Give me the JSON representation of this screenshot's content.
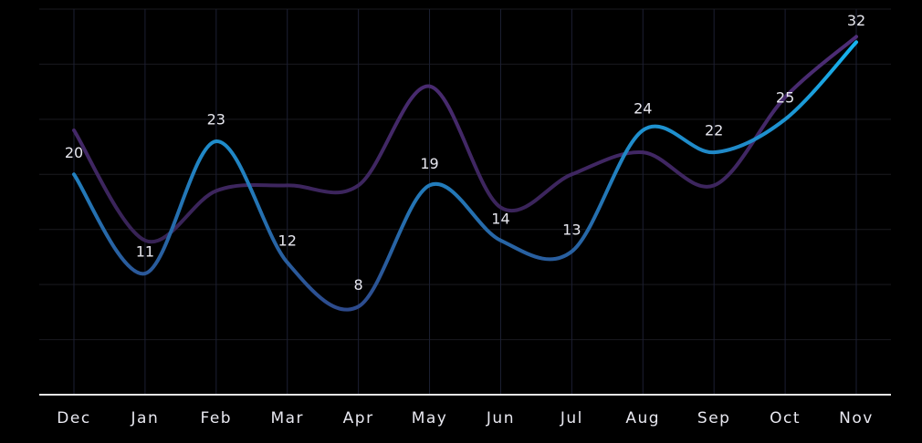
{
  "chart_data": {
    "type": "line",
    "categories": [
      "Dec",
      "Jan",
      "Feb",
      "Mar",
      "Apr",
      "May",
      "Jun",
      "Jul",
      "Aug",
      "Sep",
      "Oct",
      "Nov"
    ],
    "series": [
      {
        "color": "#1aa8ec",
        "values": [
          20,
          11,
          23,
          12,
          8,
          19,
          14,
          13,
          24,
          22,
          25,
          32
        ]
      },
      {
        "color": "#452a66",
        "values": [
          24,
          14,
          18.5,
          19,
          19,
          28,
          17,
          20,
          22,
          19,
          27,
          32.5
        ]
      }
    ],
    "ylim": [
      0,
      35
    ],
    "yticks": [
      0,
      5,
      10,
      15,
      20,
      25,
      30,
      35
    ],
    "grid": true,
    "data_labels": true
  }
}
